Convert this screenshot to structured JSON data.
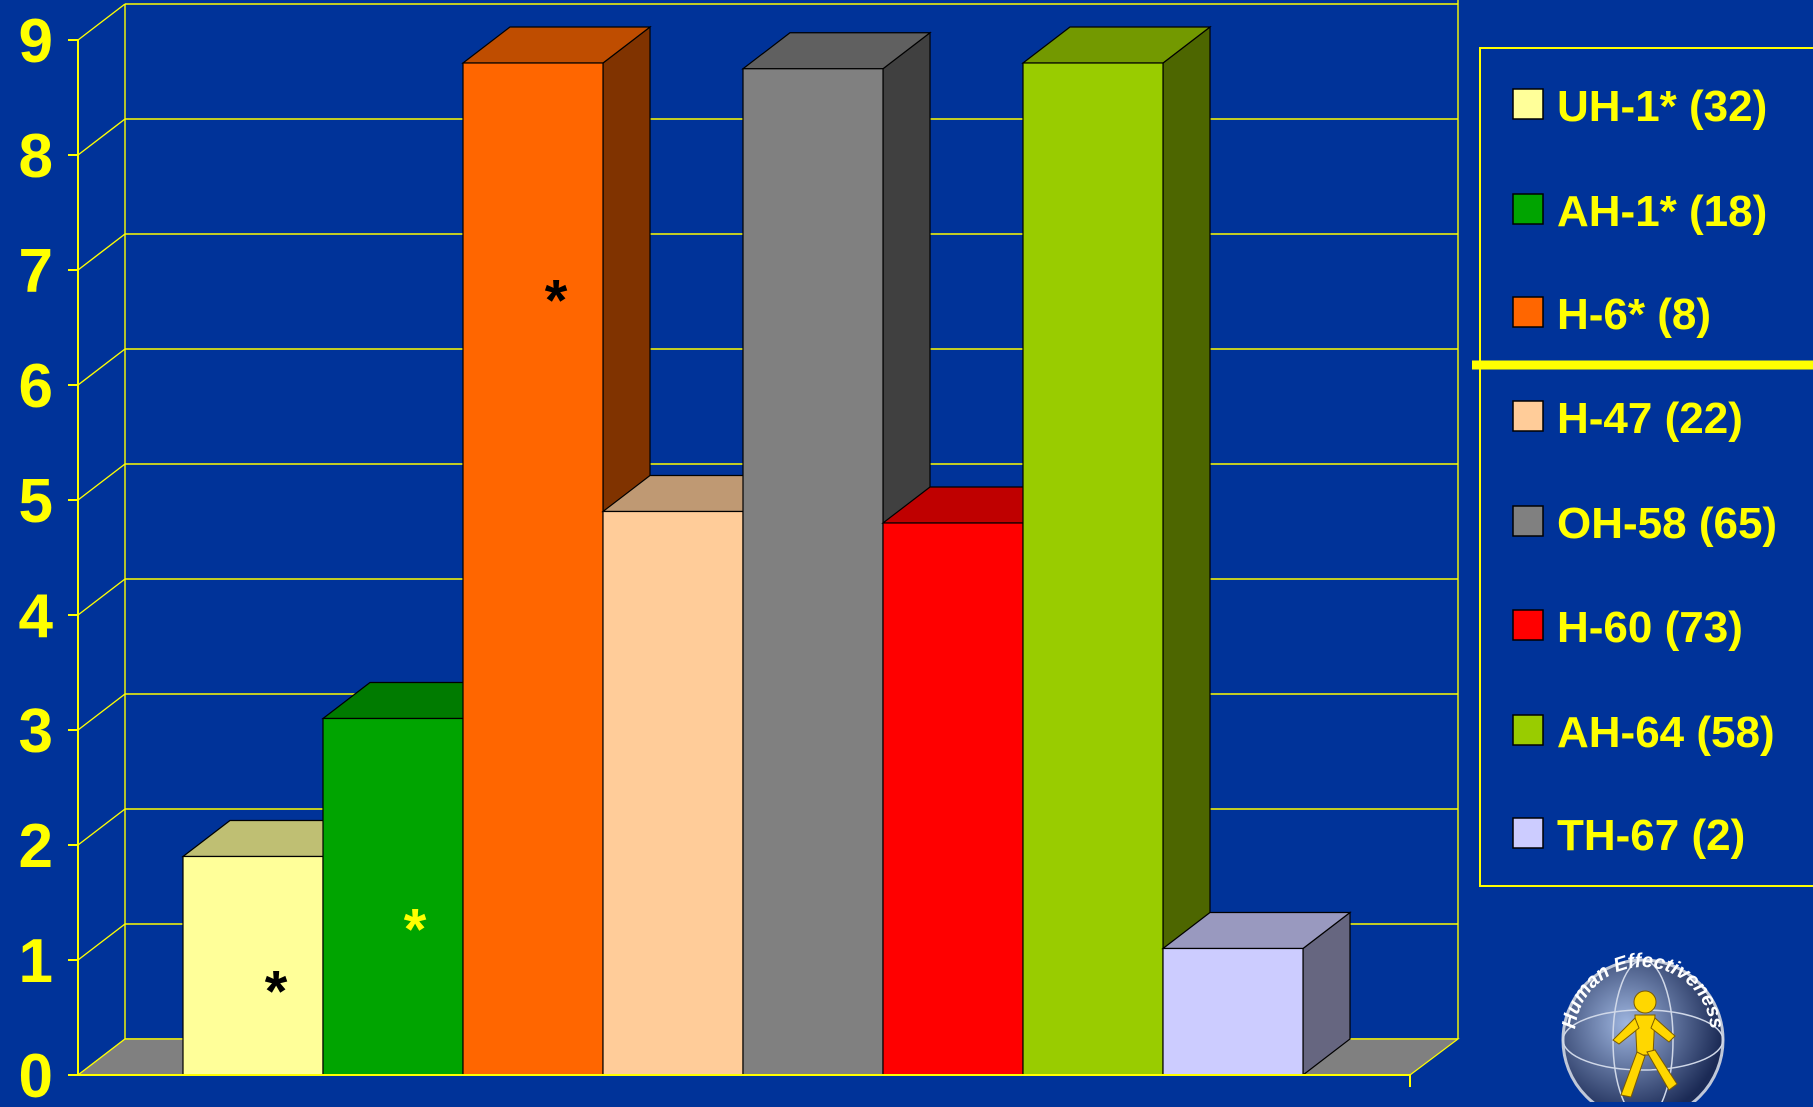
{
  "chart_data": {
    "type": "bar",
    "title": "",
    "xlabel": "",
    "ylabel": "",
    "ylim": [
      0,
      9
    ],
    "yticks": [
      "0",
      "1",
      "2",
      "3",
      "4",
      "5",
      "6",
      "7",
      "8",
      "9"
    ],
    "grid": true,
    "legend_position": "right",
    "categories": [
      "UH-1* (32)",
      "AH-1* (18)",
      "H-6* (8)",
      "H-47 (22)",
      "OH-58 (65)",
      "H-60 (73)",
      "AH-64 (58)",
      "TH-67 (2)"
    ],
    "values": [
      1.9,
      3.1,
      8.8,
      4.9,
      8.75,
      4.8,
      8.8,
      1.1
    ],
    "colors": [
      "#FFFF99",
      "#00A400",
      "#FF6600",
      "#FFCC99",
      "#808080",
      "#FF0000",
      "#99CC00",
      "#CCCCFF"
    ],
    "bar_annotations": [
      "*",
      "*",
      "*",
      "",
      "",
      "",
      "",
      ""
    ],
    "annotation_colors": [
      "#000000",
      "#FFFF00",
      "#000000",
      "",
      "",
      "",
      "",
      ""
    ],
    "legend_divider_after": 3
  },
  "theme": {
    "background": "#003399",
    "text": "#FFFF00",
    "gridline": "#FFFF00"
  },
  "logo": {
    "name": "human-effectiveness-logo",
    "text": "Human Effectiveness"
  }
}
